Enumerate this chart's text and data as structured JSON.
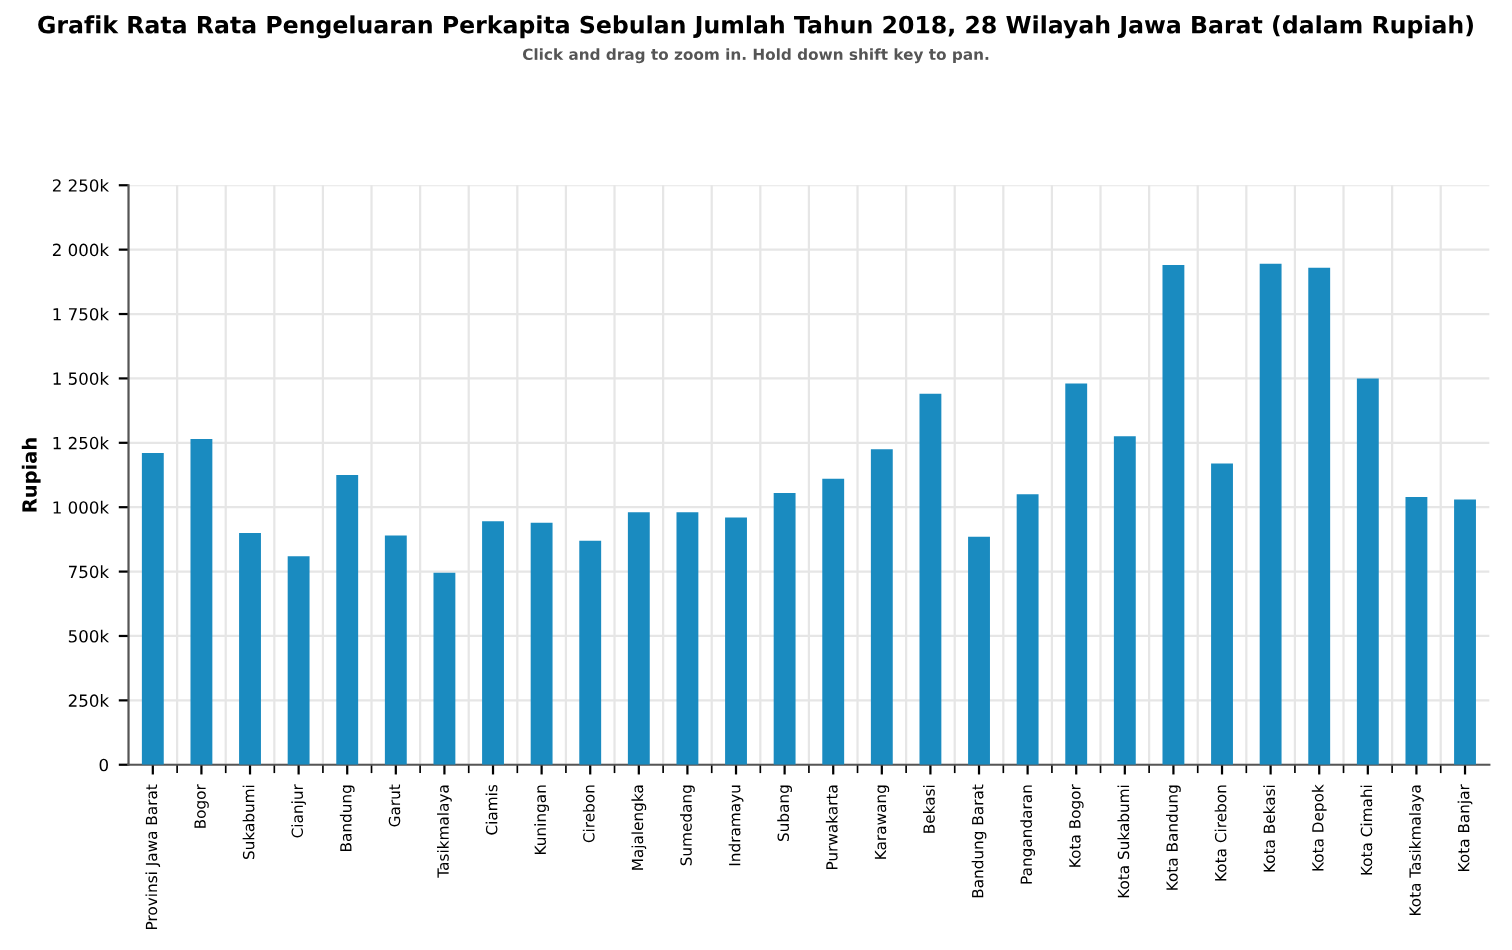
{
  "chart_data": {
    "type": "bar",
    "title": "Grafik Rata Rata Pengeluaran Perkapita Sebulan Jumlah Tahun 2018, 28 Wilayah Jawa Barat (dalam Rupiah)",
    "subtitle": "Click and drag to zoom in. Hold down shift key to pan.",
    "ylabel": "Rupiah",
    "categories": [
      "Provinsi Jawa Barat",
      "Bogor",
      "Sukabumi",
      "Cianjur",
      "Bandung",
      "Garut",
      "Tasikmalaya",
      "Ciamis",
      "Kuningan",
      "Cirebon",
      "Majalengka",
      "Sumedang",
      "Indramayu",
      "Subang",
      "Purwakarta",
      "Karawang",
      "Bekasi",
      "Bandung Barat",
      "Pangandaran",
      "Kota Bogor",
      "Kota Sukabumi",
      "Kota Bandung",
      "Kota Cirebon",
      "Kota Bekasi",
      "Kota Depok",
      "Kota Cimahi",
      "Kota Tasikmalaya",
      "Kota Banjar"
    ],
    "values": [
      1210000,
      1265000,
      900000,
      810000,
      1125000,
      890000,
      745000,
      945000,
      940000,
      870000,
      980000,
      980000,
      960000,
      1055000,
      1110000,
      1225000,
      1440000,
      885000,
      1050000,
      1480000,
      1275000,
      1940000,
      1170000,
      1945000,
      1930000,
      1500000,
      1040000,
      1030000
    ],
    "color": "#1a8bc0",
    "ylim": [
      0,
      2250000
    ],
    "yticks": [
      0,
      {
        "value": 250000,
        "label": "250k"
      },
      {
        "value": 500000,
        "label": "500k"
      },
      {
        "value": 750000,
        "label": "750k"
      },
      {
        "value": 1000000,
        "label": "1 000k"
      },
      {
        "value": 1250000,
        "label": "1 250k"
      },
      {
        "value": 1500000,
        "label": "1 500k"
      },
      {
        "value": 1750000,
        "label": "1 750k"
      },
      {
        "value": 2000000,
        "label": "2 000k"
      },
      {
        "value": 2250000,
        "label": "2 250k"
      }
    ],
    "grid": true
  }
}
